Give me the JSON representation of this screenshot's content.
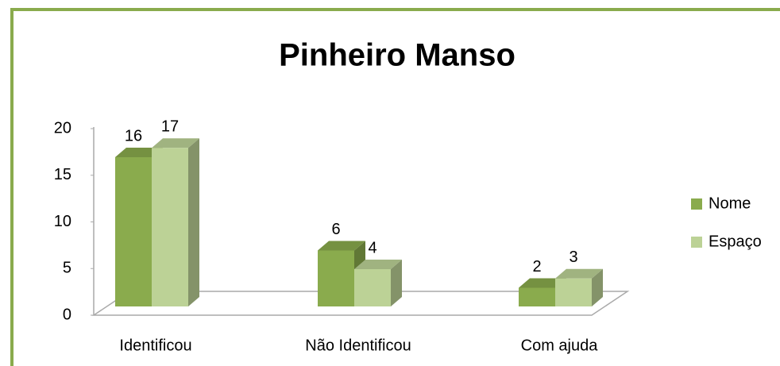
{
  "chart_data": {
    "type": "bar3d",
    "title": "Pinheiro Manso",
    "categories": [
      "Identificou",
      "Não Identificou",
      "Com ajuda"
    ],
    "series": [
      {
        "name": "Nome",
        "color": "#8aab4d",
        "values": [
          16,
          6,
          2
        ]
      },
      {
        "name": "Espaço",
        "color": "#bcd296",
        "values": [
          17,
          4,
          3
        ]
      }
    ],
    "ylim": [
      0,
      20
    ],
    "yticks": [
      0,
      5,
      10,
      15,
      20
    ],
    "legend": "right"
  }
}
